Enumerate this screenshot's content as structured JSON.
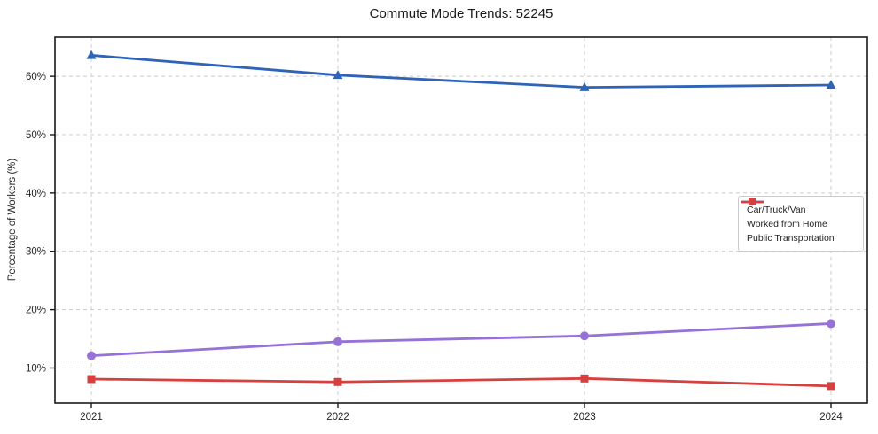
{
  "chart_data": {
    "type": "line",
    "title": "Commute Mode Trends: 52245",
    "xlabel": "",
    "ylabel": "Percentage of Workers (%)",
    "categories": [
      "2021",
      "2022",
      "2023",
      "2024"
    ],
    "series": [
      {
        "name": "Car/Truck/Van",
        "color": "#2e63b8",
        "marker": "triangle",
        "values": [
          63.6,
          60.2,
          58.1,
          58.5
        ]
      },
      {
        "name": "Worked from Home",
        "color": "#9571d8",
        "marker": "circle",
        "values": [
          12.1,
          14.5,
          15.5,
          17.6
        ]
      },
      {
        "name": "Public Transportation",
        "color": "#d6403f",
        "marker": "square",
        "values": [
          8.1,
          7.6,
          8.2,
          6.9
        ]
      }
    ],
    "ylim": [
      4.0,
      66.7
    ],
    "y_ticks": [
      10,
      20,
      30,
      40,
      50,
      60
    ],
    "y_tick_labels": [
      "10%",
      "20%",
      "30%",
      "40%",
      "50%",
      "60%"
    ],
    "grid": "dashed",
    "grid_color": "#cccccc",
    "axis_color": "#1a1a1a",
    "legend_position": "center-right"
  }
}
